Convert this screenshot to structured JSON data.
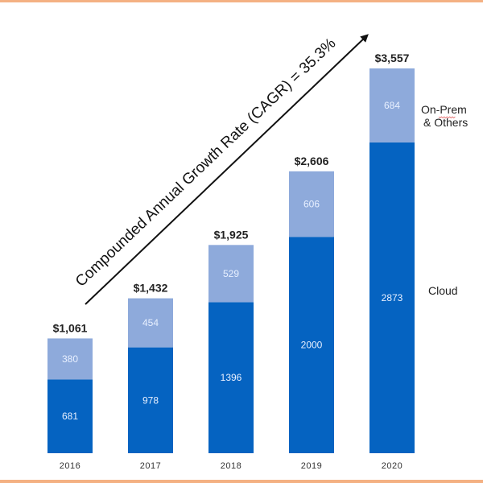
{
  "chart_data": {
    "type": "bar",
    "stacked": true,
    "title": "",
    "xlabel": "",
    "ylabel": "",
    "categories": [
      "2016",
      "2017",
      "2018",
      "2019",
      "2020"
    ],
    "series": [
      {
        "name": "Cloud",
        "values": [
          681,
          978,
          1396,
          2000,
          2873
        ],
        "color": "#0563c1"
      },
      {
        "name": "On-Prem & Others",
        "values": [
          380,
          454,
          529,
          606,
          684
        ],
        "color": "#8eaadb"
      }
    ],
    "totals": [
      "$1,061",
      "$1,432",
      "$1,925",
      "$2,606",
      "$3,557"
    ],
    "ylim": [
      0,
      3557
    ],
    "grid": false,
    "legend": {
      "placement": "right",
      "entries": [
        {
          "line1": "On-Prem",
          "line2": "& Others",
          "series": "On-Prem & Others"
        },
        {
          "line1": "Cloud",
          "line2": "",
          "series": "Cloud"
        }
      ]
    },
    "annotation": {
      "text": "Compounded Annual Growth Rate (CAGR) = 35.3%",
      "arrow": "diagonal-up-right"
    }
  },
  "frame": {
    "border_color": "#f4b183"
  }
}
